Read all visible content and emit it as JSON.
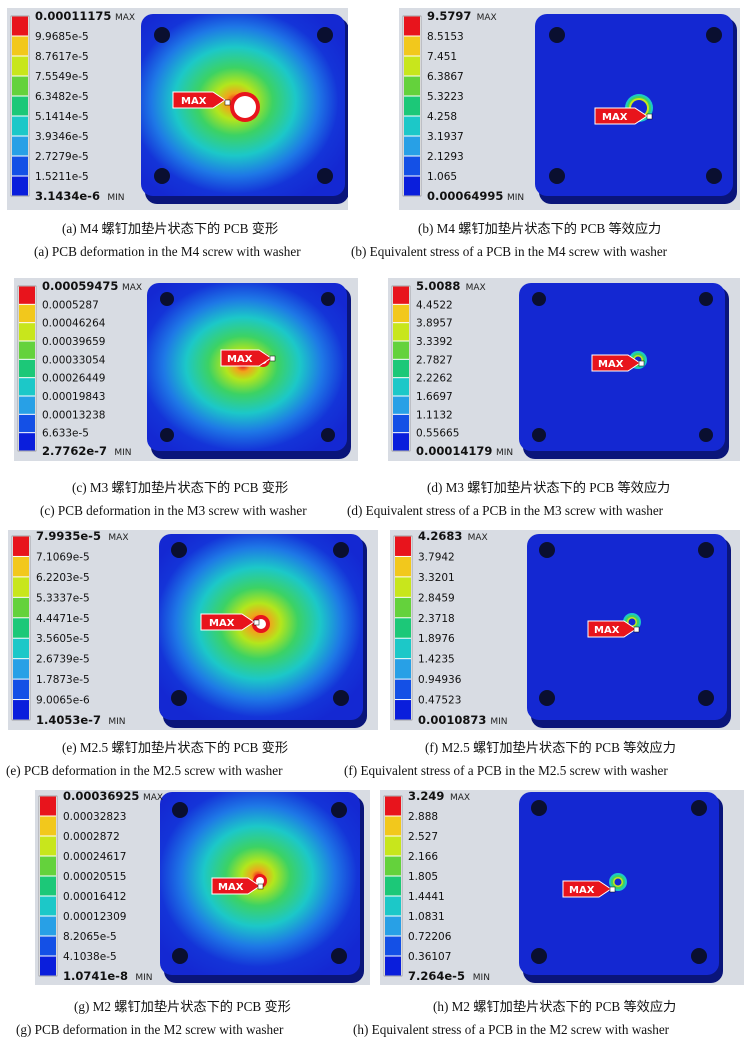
{
  "figures": [
    {
      "id": "a",
      "type": "deformation",
      "legend_values": [
        "0.00011175",
        "9.9685e-5",
        "8.7617e-5",
        "7.5549e-5",
        "6.3482e-5",
        "5.1414e-5",
        "3.9346e-5",
        "2.7279e-5",
        "1.5211e-5",
        "3.1434e-6"
      ],
      "max_label": "MAX",
      "min_label": "MIN",
      "probe_label": "MAX",
      "caption_cn": "(a) M4 螺钉加垫片状态下的 PCB 变形",
      "caption_en": "(a) PCB deformation in the M4 screw with washer"
    },
    {
      "id": "b",
      "type": "stress",
      "legend_values": [
        "9.5797",
        "8.5153",
        "7.451",
        "6.3867",
        "5.3223",
        "4.258",
        "3.1937",
        "2.1293",
        "1.065",
        "0.00064995"
      ],
      "max_label": "MAX",
      "min_label": "MIN",
      "probe_label": "MAX",
      "caption_cn": "(b) M4 螺钉加垫片状态下的 PCB 等效应力",
      "caption_en": "(b) Equivalent stress of a PCB in the M4 screw with washer"
    },
    {
      "id": "c",
      "type": "deformation",
      "legend_values": [
        "0.00059475",
        "0.0005287",
        "0.00046264",
        "0.00039659",
        "0.00033054",
        "0.00026449",
        "0.00019843",
        "0.00013238",
        "6.633e-5",
        "2.7762e-7"
      ],
      "max_label": "MAX",
      "min_label": "MIN",
      "probe_label": "MAX",
      "caption_cn": "(c) M3 螺钉加垫片状态下的 PCB 变形",
      "caption_en": "(c) PCB deformation in the M3 screw with washer"
    },
    {
      "id": "d",
      "type": "stress",
      "legend_values": [
        "5.0088",
        "4.4522",
        "3.8957",
        "3.3392",
        "2.7827",
        "2.2262",
        "1.6697",
        "1.1132",
        "0.55665",
        "0.00014179"
      ],
      "max_label": "MAX",
      "min_label": "MIN",
      "probe_label": "MAX",
      "caption_cn": "(d) M3 螺钉加垫片状态下的 PCB 等效应力",
      "caption_en": "(d) Equivalent stress of a PCB in the M3 screw with washer"
    },
    {
      "id": "e",
      "type": "deformation",
      "legend_values": [
        "7.9935e-5",
        "7.1069e-5",
        "6.2203e-5",
        "5.3337e-5",
        "4.4471e-5",
        "3.5605e-5",
        "2.6739e-5",
        "1.7873e-5",
        "9.0065e-6",
        "1.4053e-7"
      ],
      "max_label": "MAX",
      "min_label": "MIN",
      "probe_label": "MAX",
      "caption_cn": "(e) M2.5 螺钉加垫片状态下的 PCB 变形",
      "caption_en": "(e) PCB deformation in the M2.5 screw with washer"
    },
    {
      "id": "f",
      "type": "stress",
      "legend_values": [
        "4.2683",
        "3.7942",
        "3.3201",
        "2.8459",
        "2.3718",
        "1.8976",
        "1.4235",
        "0.94936",
        "0.47523",
        "0.0010873"
      ],
      "max_label": "MAX",
      "min_label": "MIN",
      "probe_label": "MAX",
      "caption_cn": "(f) M2.5 螺钉加垫片状态下的 PCB 等效应力",
      "caption_en": "(f) Equivalent stress of a PCB in the M2.5 screw with washer"
    },
    {
      "id": "g",
      "type": "deformation",
      "legend_values": [
        "0.00036925",
        "0.00032823",
        "0.0002872",
        "0.00024617",
        "0.00020515",
        "0.00016412",
        "0.00012309",
        "8.2065e-5",
        "4.1038e-5",
        "1.0741e-8"
      ],
      "max_label": "MAX",
      "min_label": "MIN",
      "probe_label": "MAX",
      "caption_cn": "(g) M2 螺钉加垫片状态下的 PCB 变形",
      "caption_en": "(g) PCB deformation in the M2 screw with washer"
    },
    {
      "id": "h",
      "type": "stress",
      "legend_values": [
        "3.249",
        "2.888",
        "2.527",
        "2.166",
        "1.805",
        "1.4441",
        "1.0831",
        "0.72206",
        "0.36107",
        "7.264e-5"
      ],
      "max_label": "MAX",
      "min_label": "MIN",
      "probe_label": "MAX",
      "caption_cn": "(h) M2 螺钉加垫片状态下的 PCB 等效应力",
      "caption_en": "(h) Equivalent stress of a PCB in the M2 screw with washer"
    }
  ],
  "colors": {
    "legend": [
      "#e8141c",
      "#f28c1c",
      "#f2c81c",
      "#c8e61c",
      "#64d23c",
      "#1cc878",
      "#1cc8c8",
      "#28a0e6",
      "#1450e6",
      "#0a1edc"
    ],
    "board": "#1428d2",
    "panel_bg": "#d8dce3",
    "probe": "#e8141c"
  }
}
